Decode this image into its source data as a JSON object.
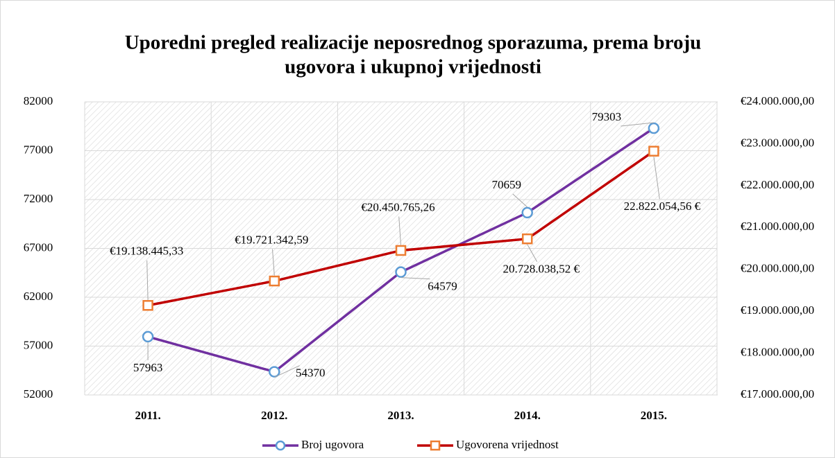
{
  "chart_data": {
    "type": "line",
    "title": [
      "Uporedni pregled realizacije neposrednog sporazuma, prema broju",
      "ugovora i ukupnoj vrijednosti"
    ],
    "categories": [
      "2011.",
      "2012.",
      "2013.",
      "2014.",
      "2015."
    ],
    "series": [
      {
        "name": "Broj ugovora",
        "color": "#7030a0",
        "marker_color": "#5b9bd5",
        "marker": "circle",
        "values": [
          57963,
          54370,
          64579,
          70659,
          79303
        ]
      },
      {
        "name": "Ugovorena vrijednost",
        "color": "#c00000",
        "marker_color": "#ed7d31",
        "marker": "square",
        "axis": "y2",
        "values": [
          19138445.33,
          19721342.59,
          20450765.26,
          20728038.52,
          22822054.56
        ],
        "value_labels": [
          "€19.138.445,33",
          "€19.721.342,59",
          "€20.450.765,26",
          "20.728.038,52 €",
          "22.822.054,56 €"
        ]
      }
    ],
    "ylim": [
      52000,
      82000
    ],
    "yticks": [
      52000,
      57000,
      62000,
      67000,
      72000,
      77000,
      82000
    ],
    "y2lim": [
      17000000,
      24000000
    ],
    "y2ticks": [
      {
        "value": 17000000,
        "label": "€17.000.000,00"
      },
      {
        "value": 18000000,
        "label": "€18.000.000,00"
      },
      {
        "value": 19000000,
        "label": "€19.000.000,00"
      },
      {
        "value": 20000000,
        "label": "€20.000.000,00"
      },
      {
        "value": 21000000,
        "label": "€21.000.000,00"
      },
      {
        "value": 22000000,
        "label": "€22.000.000,00"
      },
      {
        "value": 23000000,
        "label": "€23.000.000,00"
      },
      {
        "value": 24000000,
        "label": "€24.000.000,00"
      }
    ],
    "grid": true,
    "legend": "bottom"
  }
}
